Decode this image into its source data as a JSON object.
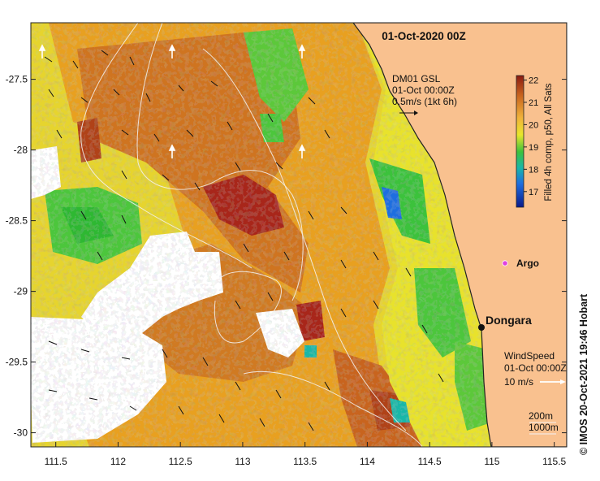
{
  "title": "01-Oct-2020 00Z",
  "current_legend": {
    "name": "DM01 GSL",
    "time": "01-Oct 00:00Z",
    "scale": "0.5m/s (1kt 6h)"
  },
  "wind_legend": {
    "name": "WindSpeed",
    "time": "01-Oct 00:00Z",
    "scale": "10 m/s"
  },
  "colorbar": {
    "label": "Filled 4h comp, p50, All Sats",
    "ticks": [
      "22",
      "21",
      "20",
      "19",
      "18",
      "17"
    ],
    "range": [
      16.3,
      22.2
    ]
  },
  "markers": {
    "argo": "Argo",
    "dongara": "Dongara"
  },
  "isobaths": [
    "200m",
    "1000m"
  ],
  "axes": {
    "x_ticks": [
      "111.5",
      "112",
      "112.5",
      "113",
      "113.5",
      "114",
      "114.5",
      "115",
      "115.5"
    ],
    "x_values": [
      111.5,
      112,
      112.5,
      113,
      113.5,
      114,
      114.5,
      115,
      115.5
    ],
    "y_ticks": [
      "-27.5",
      "-28",
      "-28.5",
      "-29",
      "-29.5",
      "-30"
    ],
    "y_values": [
      -27.5,
      -28,
      -28.5,
      -29,
      -29.5,
      -30
    ],
    "lon_range": [
      111.3,
      115.6
    ],
    "lat_range": [
      -30.1,
      -27.1
    ]
  },
  "credit": "© IMOS 20-Oct-2021 19:46 Hobart",
  "colors": {
    "land": "#f9c18f",
    "warm": "#c8641e",
    "mid": "#e8a020",
    "cool": "#e6e02a",
    "green": "#3cc23c",
    "blue": "#1e6ee0"
  }
}
